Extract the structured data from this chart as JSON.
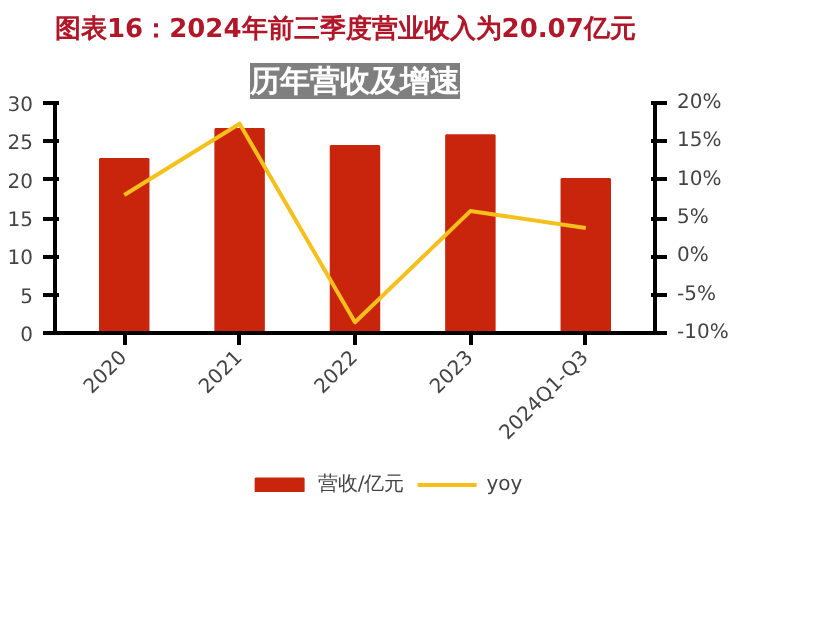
{
  "chart_data": {
    "type": "bar",
    "title": "图表16：2024年前三季度营业收入为20.07亿元",
    "subtitle": "历年营收及增速",
    "categories": [
      "2020",
      "2021",
      "2022",
      "2023",
      "2024Q1-Q3"
    ],
    "series": [
      {
        "name": "营收/亿元",
        "color": "#c8250c",
        "values": [
          22.7,
          26.6,
          24.4,
          25.8,
          20.1
        ]
      },
      {
        "name": "yoy",
        "type": "line",
        "axis": "y2",
        "color": "#f5c01c",
        "values": [
          8.0,
          17.3,
          -8.6,
          5.9,
          3.7
        ]
      }
    ],
    "ylim": [
      0,
      30
    ],
    "yticks": [
      0,
      5,
      10,
      15,
      20,
      25,
      30
    ],
    "y2lim": [
      -10,
      20
    ],
    "y2ticks": [
      {
        "value": -10,
        "label": "-10%"
      },
      {
        "value": -5,
        "label": "-5%"
      },
      {
        "value": 0,
        "label": "0%"
      },
      {
        "value": 5,
        "label": "5%"
      },
      {
        "value": 10,
        "label": "10%"
      },
      {
        "value": 15,
        "label": "15%"
      },
      {
        "value": 20,
        "label": "20%"
      }
    ],
    "legend": "bottom",
    "grid": false
  }
}
